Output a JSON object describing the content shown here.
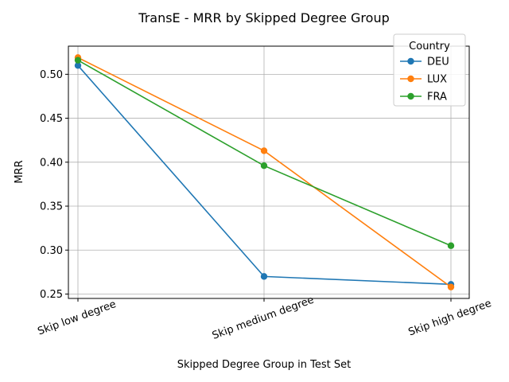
{
  "chart_data": {
    "type": "line",
    "title": "TransE - MRR by Skipped Degree Group",
    "xlabel": "Skipped Degree Group in Test Set",
    "ylabel": "MRR",
    "categories": [
      "Skip low degree",
      "Skip medium degree",
      "Skip high degree"
    ],
    "ylim": [
      0.245,
      0.532
    ],
    "yticks": [
      0.25,
      0.3,
      0.35,
      0.4,
      0.45,
      0.5
    ],
    "ytick_labels": [
      "0.25",
      "0.30",
      "0.35",
      "0.40",
      "0.45",
      "0.50"
    ],
    "grid": true,
    "legend": {
      "title": "Country",
      "placement": "top-right"
    },
    "series": [
      {
        "name": "DEU",
        "color": "#1f77b4",
        "values": [
          0.51,
          0.27,
          0.261
        ]
      },
      {
        "name": "LUX",
        "color": "#ff7f0e",
        "values": [
          0.519,
          0.413,
          0.258
        ]
      },
      {
        "name": "FRA",
        "color": "#2ca02c",
        "values": [
          0.516,
          0.396,
          0.305
        ]
      }
    ]
  }
}
